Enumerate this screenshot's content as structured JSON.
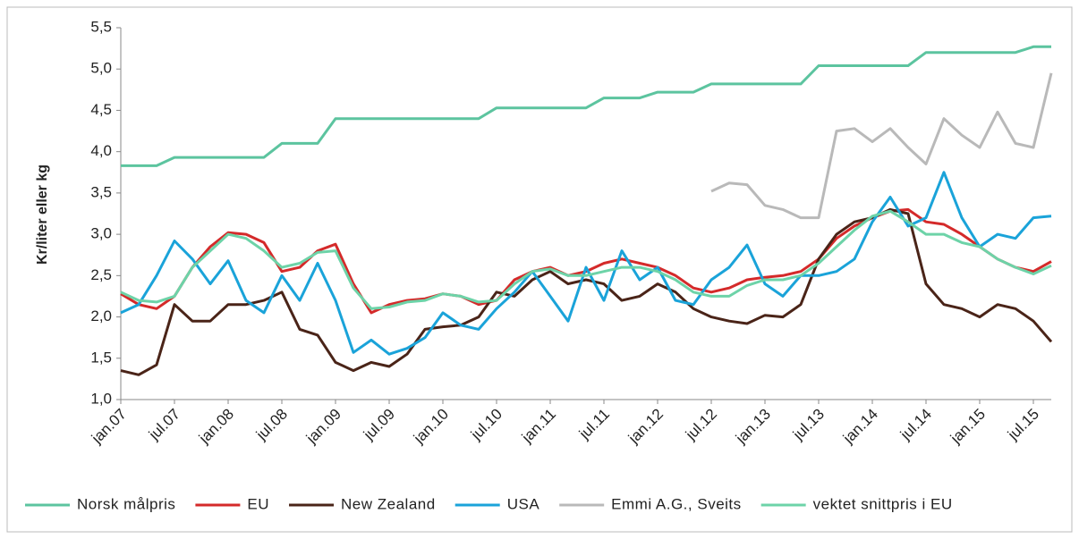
{
  "chart_data": {
    "type": "line",
    "y_label": "Kr/liter eller kg",
    "x": [
      0,
      2,
      4,
      6,
      8,
      10,
      12,
      14,
      16,
      18,
      20,
      22,
      24,
      26,
      28,
      30,
      32,
      34,
      36,
      38,
      40,
      42,
      44,
      46,
      48,
      50,
      52,
      54,
      56,
      58,
      60,
      62,
      64,
      66,
      68,
      70,
      72,
      74,
      76,
      78,
      80,
      82,
      84,
      86,
      88,
      90,
      92,
      94,
      96,
      98,
      100,
      102,
      104
    ],
    "xlim": [
      0,
      104
    ],
    "xticks": [
      {
        "value": 0,
        "label": "jan.07"
      },
      {
        "value": 6,
        "label": "jul.07"
      },
      {
        "value": 12,
        "label": "jan.08"
      },
      {
        "value": 18,
        "label": "jul.08"
      },
      {
        "value": 24,
        "label": "jan.09"
      },
      {
        "value": 30,
        "label": "jul.09"
      },
      {
        "value": 36,
        "label": "jan.10"
      },
      {
        "value": 42,
        "label": "jul.10"
      },
      {
        "value": 48,
        "label": "jan.11"
      },
      {
        "value": 54,
        "label": "jul.11"
      },
      {
        "value": 60,
        "label": "jan.12"
      },
      {
        "value": 66,
        "label": "jul.12"
      },
      {
        "value": 72,
        "label": "jan.13"
      },
      {
        "value": 78,
        "label": "jul.13"
      },
      {
        "value": 84,
        "label": "jan.14"
      },
      {
        "value": 90,
        "label": "jul.14"
      },
      {
        "value": 96,
        "label": "jan.15"
      },
      {
        "value": 102,
        "label": "jul.15"
      }
    ],
    "ylim": [
      1.0,
      5.5
    ],
    "yticks": [
      {
        "value": 1.0,
        "label": "1,0"
      },
      {
        "value": 1.5,
        "label": "1,5"
      },
      {
        "value": 2.0,
        "label": "2,0"
      },
      {
        "value": 2.5,
        "label": "2,5"
      },
      {
        "value": 3.0,
        "label": "3,0"
      },
      {
        "value": 3.5,
        "label": "3,5"
      },
      {
        "value": 4.0,
        "label": "4,0"
      },
      {
        "value": 4.5,
        "label": "4,5"
      },
      {
        "value": 5.0,
        "label": "5,0"
      },
      {
        "value": 5.5,
        "label": "5,5"
      }
    ],
    "grid": false,
    "legend": "bottom",
    "series": [
      {
        "name": "Norsk målpris",
        "color": "#5cc49f",
        "values": [
          3.83,
          3.83,
          3.83,
          3.93,
          3.93,
          3.93,
          3.93,
          3.93,
          3.93,
          4.1,
          4.1,
          4.1,
          4.4,
          4.4,
          4.4,
          4.4,
          4.4,
          4.4,
          4.4,
          4.4,
          4.4,
          4.53,
          4.53,
          4.53,
          4.53,
          4.53,
          4.53,
          4.65,
          4.65,
          4.65,
          4.72,
          4.72,
          4.72,
          4.82,
          4.82,
          4.82,
          4.82,
          4.82,
          4.82,
          5.04,
          5.04,
          5.04,
          5.04,
          5.04,
          5.04,
          5.2,
          5.2,
          5.2,
          5.2,
          5.2,
          5.2,
          5.27,
          5.27
        ]
      },
      {
        "name": "EU",
        "color": "#d42a2a",
        "values": [
          2.28,
          2.15,
          2.1,
          2.25,
          2.6,
          2.85,
          3.02,
          3.0,
          2.9,
          2.55,
          2.6,
          2.8,
          2.88,
          2.4,
          2.05,
          2.15,
          2.2,
          2.22,
          2.28,
          2.25,
          2.15,
          2.2,
          2.45,
          2.55,
          2.6,
          2.5,
          2.55,
          2.65,
          2.7,
          2.65,
          2.6,
          2.5,
          2.35,
          2.3,
          2.35,
          2.45,
          2.48,
          2.5,
          2.55,
          2.7,
          2.95,
          3.1,
          3.2,
          3.28,
          3.3,
          3.15,
          3.12,
          3.0,
          2.85,
          2.7,
          2.6,
          2.55,
          2.67
        ]
      },
      {
        "name": "New Zealand",
        "color": "#4a2418",
        "values": [
          1.35,
          1.3,
          1.42,
          2.15,
          1.95,
          1.95,
          2.15,
          2.15,
          2.2,
          2.3,
          1.85,
          1.78,
          1.45,
          1.35,
          1.45,
          1.4,
          1.55,
          1.85,
          1.88,
          1.9,
          2.0,
          2.3,
          2.25,
          2.45,
          2.55,
          2.4,
          2.45,
          2.4,
          2.2,
          2.25,
          2.4,
          2.3,
          2.1,
          2.0,
          1.95,
          1.92,
          2.02,
          2.0,
          2.15,
          2.7,
          3.0,
          3.15,
          3.2,
          3.3,
          3.25,
          2.4,
          2.15,
          2.1,
          2.0,
          2.15,
          2.1,
          1.95,
          1.7
        ]
      },
      {
        "name": "USA",
        "color": "#1aa3d9",
        "values": [
          2.05,
          2.15,
          2.5,
          2.92,
          2.7,
          2.4,
          2.68,
          2.2,
          2.05,
          2.5,
          2.2,
          2.65,
          2.2,
          1.57,
          1.72,
          1.55,
          1.62,
          1.75,
          2.05,
          1.9,
          1.85,
          2.1,
          2.3,
          2.55,
          2.25,
          1.95,
          2.6,
          2.2,
          2.8,
          2.45,
          2.6,
          2.2,
          2.15,
          2.45,
          2.6,
          2.87,
          2.4,
          2.25,
          2.5,
          2.5,
          2.55,
          2.7,
          3.15,
          3.45,
          3.1,
          3.2,
          3.75,
          3.2,
          2.85,
          3.0,
          2.95,
          3.2,
          3.22
        ]
      },
      {
        "name": "Emmi A.G., Sveits",
        "color": "#b9b9b9",
        "values": [
          null,
          null,
          null,
          null,
          null,
          null,
          null,
          null,
          null,
          null,
          null,
          null,
          null,
          null,
          null,
          null,
          null,
          null,
          null,
          null,
          null,
          null,
          null,
          null,
          null,
          null,
          null,
          null,
          null,
          null,
          null,
          null,
          null,
          3.52,
          3.62,
          3.6,
          3.35,
          3.3,
          3.2,
          3.2,
          4.25,
          4.28,
          4.12,
          4.28,
          4.05,
          3.85,
          4.4,
          4.2,
          4.05,
          4.48,
          4.1,
          4.05,
          4.95
        ]
      },
      {
        "name": "vektet snittpris i EU",
        "color": "#6dd3a8",
        "values": [
          2.3,
          2.2,
          2.18,
          2.25,
          2.6,
          2.8,
          3.0,
          2.95,
          2.8,
          2.6,
          2.65,
          2.78,
          2.8,
          2.35,
          2.1,
          2.12,
          2.18,
          2.2,
          2.28,
          2.25,
          2.18,
          2.2,
          2.4,
          2.55,
          2.58,
          2.5,
          2.5,
          2.55,
          2.6,
          2.6,
          2.55,
          2.45,
          2.3,
          2.25,
          2.25,
          2.38,
          2.45,
          2.45,
          2.5,
          2.65,
          2.85,
          3.05,
          3.22,
          3.28,
          3.15,
          3.0,
          3.0,
          2.9,
          2.85,
          2.7,
          2.6,
          2.52,
          2.62
        ]
      }
    ]
  }
}
